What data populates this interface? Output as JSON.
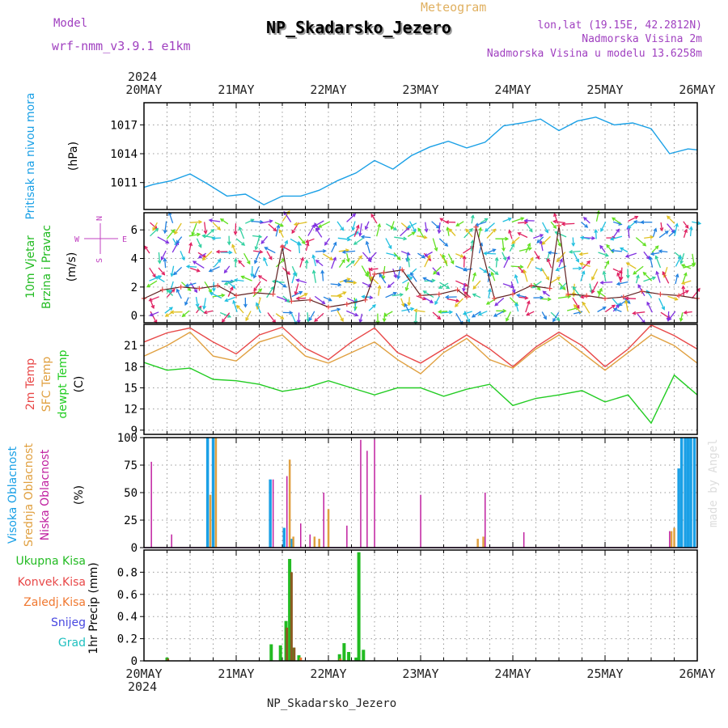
{
  "header": {
    "model_label": "Model",
    "model_name": "wrf-nmm_v3.9.1  e1km",
    "product": "Meteogram",
    "station": "NP_Skadarsko_Jezero",
    "lonlat": "lon,lat (19.15E, 42.2812N)",
    "alt": "Nadmorska Visina 2m",
    "model_alt": "Nadmorska Visina u modelu 13.6258m",
    "footer_station": "NP_Skadarsko_Jezero",
    "credit": "made by Angel",
    "year_top": "2024",
    "year_bottom": "2024"
  },
  "dates": [
    "20MAY",
    "21MAY",
    "22MAY",
    "23MAY",
    "24MAY",
    "25MAY",
    "26MAY"
  ],
  "colors": {
    "pressure": "#1aa0e6",
    "temp2m": "#e84848",
    "sfc": "#e0a040",
    "dew": "#22cc22",
    "high": "#1aa0e6",
    "mid": "#e0a040",
    "low": "#c020a0",
    "total": "#22bb22",
    "conv": "#e84848",
    "frozen": "#f07830",
    "snow": "#4848e0",
    "hail": "#20c0c0"
  },
  "chart_data": [
    {
      "type": "line",
      "id": "pressure",
      "ylabel_lines": [
        "Pritisak na nivou mora",
        "(hPa)"
      ],
      "ylim": [
        1008.2,
        1019.3
      ],
      "yticks": [
        1011,
        1014,
        1017
      ],
      "x": [
        0,
        0.1,
        0.3,
        0.5,
        0.7,
        0.9,
        1.1,
        1.3,
        1.5,
        1.7,
        1.9,
        2.1,
        2.3,
        2.5,
        2.7,
        2.9,
        3.1,
        3.3,
        3.5,
        3.7,
        3.9,
        4.1,
        4.3,
        4.5,
        4.7,
        4.9,
        5.1,
        5.3,
        5.5,
        5.7,
        5.9,
        6.0
      ],
      "series": [
        {
          "values": [
            1010.5,
            1010.8,
            1011.2,
            1011.9,
            1010.8,
            1009.6,
            1009.8,
            1008.7,
            1009.6,
            1009.6,
            1010.2,
            1011.2,
            1012.0,
            1013.3,
            1012.4,
            1013.8,
            1014.7,
            1015.3,
            1014.6,
            1015.2,
            1016.9,
            1017.2,
            1017.6,
            1016.4,
            1017.4,
            1017.8,
            1017.0,
            1017.2,
            1016.6,
            1014.0,
            1014.5,
            1014.4
          ]
        }
      ]
    },
    {
      "type": "line",
      "id": "wind",
      "ylabel_lines": [
        "10m Vjetar",
        "Brzina i Pravac",
        "(m/s)"
      ],
      "compass": {
        "n": "N",
        "w": "W",
        "e": "E",
        "s": "S"
      },
      "ylim": [
        -0.5,
        7.2
      ],
      "yticks": [
        0,
        2,
        4,
        6
      ],
      "x": [
        0,
        0.2,
        0.4,
        0.6,
        0.8,
        1.0,
        1.2,
        1.4,
        1.5,
        1.6,
        1.8,
        2.0,
        2.2,
        2.4,
        2.5,
        2.6,
        2.8,
        3.0,
        3.2,
        3.4,
        3.5,
        3.6,
        3.8,
        4.0,
        4.2,
        4.4,
        4.5,
        4.6,
        4.8,
        5.0,
        5.2,
        5.4,
        5.6,
        5.8,
        6.0
      ],
      "series": [
        {
          "name_key": "speed",
          "values": [
            1.2,
            1.8,
            2.0,
            1.9,
            2.1,
            1.4,
            1.6,
            1.5,
            4.8,
            1.0,
            1.1,
            0.6,
            0.8,
            1.1,
            2.9,
            3.0,
            3.2,
            1.4,
            1.5,
            1.8,
            1.3,
            6.2,
            1.2,
            1.5,
            2.1,
            1.9,
            6.3,
            1.5,
            1.4,
            1.2,
            1.3,
            1.7,
            1.5,
            1.4,
            1.2
          ]
        }
      ]
    },
    {
      "type": "line",
      "id": "temp",
      "ylabel_lines": [
        "2m Temp",
        "SFC Temp",
        "dewpt Temp",
        "(C)"
      ],
      "ylim": [
        8.4,
        24.0
      ],
      "yticks": [
        9,
        12,
        15,
        18,
        21
      ],
      "x": [
        0,
        0.25,
        0.5,
        0.75,
        1.0,
        1.25,
        1.5,
        1.75,
        2.0,
        2.25,
        2.5,
        2.75,
        3.0,
        3.25,
        3.5,
        3.75,
        4.0,
        4.25,
        4.5,
        4.75,
        5.0,
        5.25,
        5.5,
        5.75,
        6.0
      ],
      "series": [
        {
          "name_key": "temp2m",
          "values": [
            21.5,
            22.8,
            23.5,
            21.5,
            19.8,
            22.5,
            23.6,
            20.6,
            19.0,
            21.5,
            23.5,
            20.0,
            18.5,
            20.5,
            22.5,
            20.5,
            18.0,
            20.8,
            22.9,
            21.0,
            18.0,
            20.5,
            23.9,
            22.4,
            20.5
          ]
        },
        {
          "name_key": "sfc",
          "values": [
            19.5,
            21.0,
            22.9,
            19.5,
            18.8,
            21.5,
            22.5,
            19.5,
            18.5,
            20.0,
            21.5,
            19.0,
            17.0,
            20.0,
            22.0,
            19.0,
            17.8,
            20.5,
            22.5,
            20.0,
            17.5,
            20.0,
            22.5,
            21.0,
            18.5
          ]
        },
        {
          "name_key": "dew",
          "values": [
            18.6,
            17.5,
            17.8,
            16.2,
            16.0,
            15.5,
            14.5,
            15.0,
            16.0,
            15.0,
            14.0,
            15.0,
            15.0,
            13.8,
            14.8,
            15.5,
            12.5,
            13.5,
            14.0,
            14.6,
            13.0,
            14.0,
            10.0,
            16.8,
            14.0
          ]
        }
      ]
    },
    {
      "type": "bar",
      "id": "clouds",
      "ylabel_lines": [
        "Visoka Oblacnost",
        "Srednja Oblacnost",
        "Niska Oblacnost",
        "(%)"
      ],
      "ylim": [
        0,
        100
      ],
      "yticks": [
        0,
        25,
        50,
        75,
        100
      ],
      "series": [
        {
          "name_key": "low",
          "x": [
            0.08,
            0.3,
            1.4,
            1.55,
            1.7,
            1.8,
            1.95,
            2.2,
            2.35,
            2.42,
            2.5,
            3.0,
            3.7,
            4.12,
            5.7
          ],
          "values": [
            78,
            12,
            62,
            65,
            22,
            12,
            50,
            20,
            98,
            88,
            98,
            48,
            50,
            14,
            15
          ]
        },
        {
          "name_key": "mid",
          "x": [
            0.72,
            0.78,
            1.58,
            1.62,
            1.85,
            1.9,
            2.0,
            3.62,
            3.68,
            5.72,
            5.75
          ],
          "values": [
            48,
            100,
            80,
            10,
            10,
            8,
            35,
            8,
            10,
            15,
            18
          ]
        },
        {
          "name_key": "high",
          "x": [
            0.69,
            0.75,
            1.37,
            1.52,
            1.6,
            5.8,
            5.83,
            5.87,
            5.9,
            5.93,
            5.97
          ],
          "values": [
            100,
            100,
            62,
            18,
            8,
            72,
            100,
            100,
            100,
            100,
            100
          ]
        }
      ]
    },
    {
      "type": "bar",
      "id": "precip",
      "ylabel_lines": [
        "1hr Precip (mm)"
      ],
      "legend": [
        "Ukupna Kisa",
        "Konvek.Kisa",
        "Zaledj.Kisa",
        "Snijeg",
        "Grad"
      ],
      "ylim": [
        0,
        1.0
      ],
      "yticks": [
        0,
        0.2,
        0.4,
        0.6,
        0.8
      ],
      "series": [
        {
          "name_key": "total",
          "x": [
            0.25,
            1.38,
            1.48,
            1.54,
            1.58,
            1.62,
            1.68,
            2.12,
            2.17,
            2.22,
            2.3,
            2.33,
            2.38
          ],
          "values": [
            0.03,
            0.15,
            0.14,
            0.36,
            0.92,
            0.12,
            0.05,
            0.06,
            0.16,
            0.08,
            0.03,
            0.98,
            0.1
          ]
        },
        {
          "name_key": "conv",
          "x": [
            0.26,
            1.55,
            1.6,
            1.63
          ],
          "values": [
            0.02,
            0.3,
            0.8,
            0.12
          ]
        },
        {
          "name_key": "frozen",
          "x": [
            1.7,
            2.13
          ],
          "values": [
            0.03,
            0.02
          ]
        }
      ]
    }
  ]
}
